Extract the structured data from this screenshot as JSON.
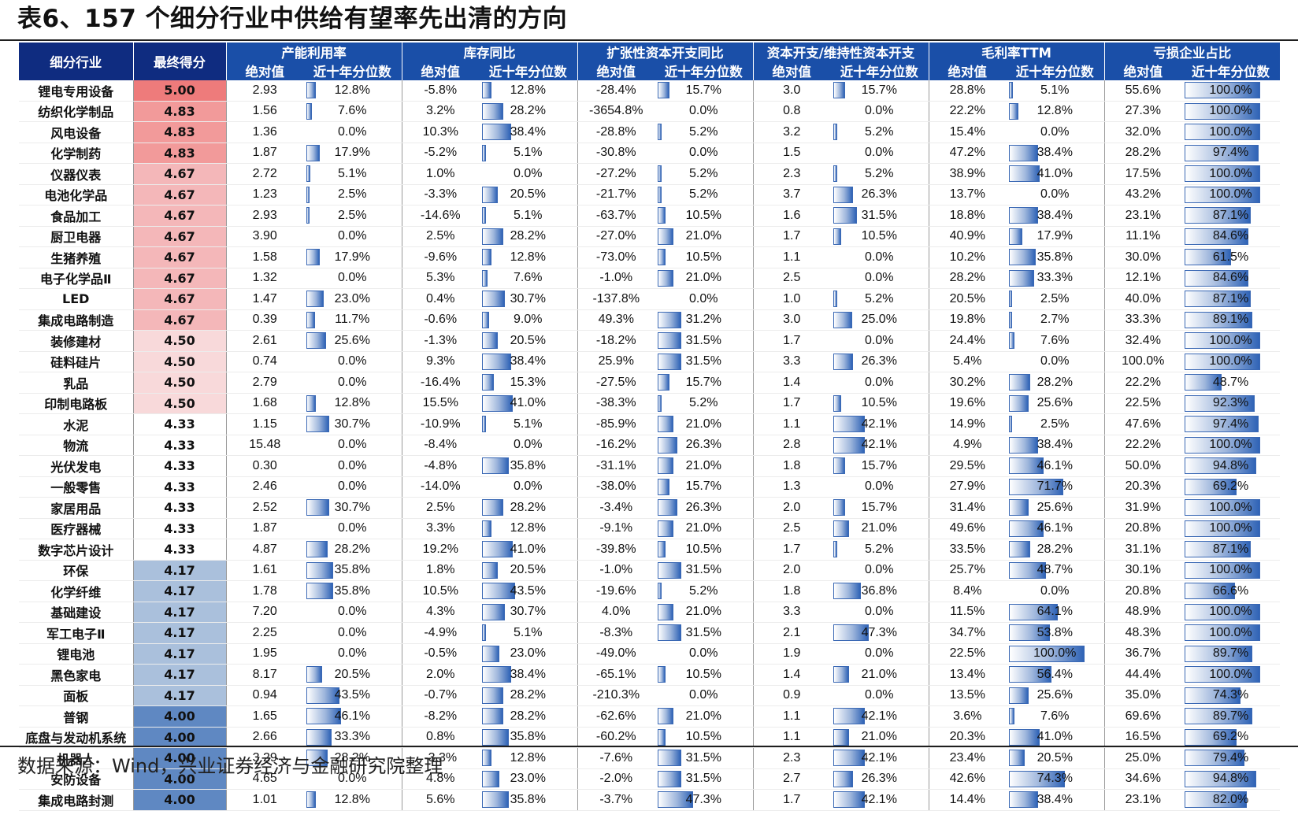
{
  "title": "表6、157 个细分行业中供给有望率先出清的方向",
  "source": "数据来源：Wind，兴业证券经济与金融研究院整理",
  "header": {
    "industry": "细分行业",
    "score": "最终得分",
    "groups": [
      "产能利用率",
      "库存同比",
      "扩张性资本开支同比",
      "资本开支/维持性资本开支",
      "毛利率TTM",
      "亏损企业占比"
    ],
    "sub_abs": "绝对值",
    "sub_pct": "近十年分位数"
  },
  "score_colors": {
    "5.00": "#ee7b7b",
    "4.83": "#f29a9a",
    "4.67": "#f4b7b9",
    "4.50": "#f8d9da",
    "4.33": "#ffffff",
    "4.17": "#aac0dc",
    "4.00": "#5f88c2"
  },
  "rows": [
    {
      "name": "锂电专用设备",
      "score": "5.00",
      "cells": [
        [
          "2.93",
          "12.8%"
        ],
        [
          "-5.8%",
          "12.8%"
        ],
        [
          "-28.4%",
          "15.7%"
        ],
        [
          "3.0",
          "15.7%"
        ],
        [
          "28.8%",
          "5.1%"
        ],
        [
          "55.6%",
          "100.0%"
        ]
      ]
    },
    {
      "name": "纺织化学制品",
      "score": "4.83",
      "cells": [
        [
          "1.56",
          "7.6%"
        ],
        [
          "3.2%",
          "28.2%"
        ],
        [
          "-3654.8%",
          "0.0%"
        ],
        [
          "0.8",
          "0.0%"
        ],
        [
          "22.2%",
          "12.8%"
        ],
        [
          "27.3%",
          "100.0%"
        ]
      ]
    },
    {
      "name": "风电设备",
      "score": "4.83",
      "cells": [
        [
          "1.36",
          "0.0%"
        ],
        [
          "10.3%",
          "38.4%"
        ],
        [
          "-28.8%",
          "5.2%"
        ],
        [
          "3.2",
          "5.2%"
        ],
        [
          "15.4%",
          "0.0%"
        ],
        [
          "32.0%",
          "100.0%"
        ]
      ]
    },
    {
      "name": "化学制药",
      "score": "4.83",
      "cells": [
        [
          "1.87",
          "17.9%"
        ],
        [
          "-5.2%",
          "5.1%"
        ],
        [
          "-30.8%",
          "0.0%"
        ],
        [
          "1.5",
          "0.0%"
        ],
        [
          "47.2%",
          "38.4%"
        ],
        [
          "28.2%",
          "97.4%"
        ]
      ]
    },
    {
      "name": "仪器仪表",
      "score": "4.67",
      "cells": [
        [
          "2.72",
          "5.1%"
        ],
        [
          "1.0%",
          "0.0%"
        ],
        [
          "-27.2%",
          "5.2%"
        ],
        [
          "2.3",
          "5.2%"
        ],
        [
          "38.9%",
          "41.0%"
        ],
        [
          "17.5%",
          "100.0%"
        ]
      ]
    },
    {
      "name": "电池化学品",
      "score": "4.67",
      "cells": [
        [
          "1.23",
          "2.5%"
        ],
        [
          "-3.3%",
          "20.5%"
        ],
        [
          "-21.7%",
          "5.2%"
        ],
        [
          "3.7",
          "26.3%"
        ],
        [
          "13.7%",
          "0.0%"
        ],
        [
          "43.2%",
          "100.0%"
        ]
      ]
    },
    {
      "name": "食品加工",
      "score": "4.67",
      "cells": [
        [
          "2.93",
          "2.5%"
        ],
        [
          "-14.6%",
          "5.1%"
        ],
        [
          "-63.7%",
          "10.5%"
        ],
        [
          "1.6",
          "31.5%"
        ],
        [
          "18.8%",
          "38.4%"
        ],
        [
          "23.1%",
          "87.1%"
        ]
      ]
    },
    {
      "name": "厨卫电器",
      "score": "4.67",
      "cells": [
        [
          "3.90",
          "0.0%"
        ],
        [
          "2.5%",
          "28.2%"
        ],
        [
          "-27.0%",
          "21.0%"
        ],
        [
          "1.7",
          "10.5%"
        ],
        [
          "40.9%",
          "17.9%"
        ],
        [
          "11.1%",
          "84.6%"
        ]
      ]
    },
    {
      "name": "生猪养殖",
      "score": "4.67",
      "cells": [
        [
          "1.58",
          "17.9%"
        ],
        [
          "-9.6%",
          "12.8%"
        ],
        [
          "-73.0%",
          "10.5%"
        ],
        [
          "1.1",
          "0.0%"
        ],
        [
          "10.2%",
          "35.8%"
        ],
        [
          "30.0%",
          "61.5%"
        ]
      ]
    },
    {
      "name": "电子化学品Ⅱ",
      "score": "4.67",
      "cells": [
        [
          "1.32",
          "0.0%"
        ],
        [
          "5.3%",
          "7.6%"
        ],
        [
          "-1.0%",
          "21.0%"
        ],
        [
          "2.5",
          "0.0%"
        ],
        [
          "28.2%",
          "33.3%"
        ],
        [
          "12.1%",
          "84.6%"
        ]
      ]
    },
    {
      "name": "LED",
      "score": "4.67",
      "cells": [
        [
          "1.47",
          "23.0%"
        ],
        [
          "0.4%",
          "30.7%"
        ],
        [
          "-137.8%",
          "0.0%"
        ],
        [
          "1.0",
          "5.2%"
        ],
        [
          "20.5%",
          "2.5%"
        ],
        [
          "40.0%",
          "87.1%"
        ]
      ]
    },
    {
      "name": "集成电路制造",
      "score": "4.67",
      "cells": [
        [
          "0.39",
          "11.7%"
        ],
        [
          "-0.6%",
          "9.0%"
        ],
        [
          "49.3%",
          "31.2%"
        ],
        [
          "3.0",
          "25.0%"
        ],
        [
          "19.8%",
          "2.7%"
        ],
        [
          "33.3%",
          "89.1%"
        ]
      ]
    },
    {
      "name": "装修建材",
      "score": "4.50",
      "cells": [
        [
          "2.61",
          "25.6%"
        ],
        [
          "-1.3%",
          "20.5%"
        ],
        [
          "-18.2%",
          "31.5%"
        ],
        [
          "1.7",
          "0.0%"
        ],
        [
          "24.4%",
          "7.6%"
        ],
        [
          "32.4%",
          "100.0%"
        ]
      ]
    },
    {
      "name": "硅料硅片",
      "score": "4.50",
      "cells": [
        [
          "0.74",
          "0.0%"
        ],
        [
          "9.3%",
          "38.4%"
        ],
        [
          "25.9%",
          "31.5%"
        ],
        [
          "3.3",
          "26.3%"
        ],
        [
          "5.4%",
          "0.0%"
        ],
        [
          "100.0%",
          "100.0%"
        ]
      ]
    },
    {
      "name": "乳品",
      "score": "4.50",
      "cells": [
        [
          "2.79",
          "0.0%"
        ],
        [
          "-16.4%",
          "15.3%"
        ],
        [
          "-27.5%",
          "15.7%"
        ],
        [
          "1.4",
          "0.0%"
        ],
        [
          "30.2%",
          "28.2%"
        ],
        [
          "22.2%",
          "48.7%"
        ]
      ]
    },
    {
      "name": "印制电路板",
      "score": "4.50",
      "cells": [
        [
          "1.68",
          "12.8%"
        ],
        [
          "15.5%",
          "41.0%"
        ],
        [
          "-38.3%",
          "5.2%"
        ],
        [
          "1.7",
          "10.5%"
        ],
        [
          "19.6%",
          "25.6%"
        ],
        [
          "22.5%",
          "92.3%"
        ]
      ]
    },
    {
      "name": "水泥",
      "score": "4.33",
      "cells": [
        [
          "1.15",
          "30.7%"
        ],
        [
          "-10.9%",
          "5.1%"
        ],
        [
          "-85.9%",
          "21.0%"
        ],
        [
          "1.1",
          "42.1%"
        ],
        [
          "14.9%",
          "2.5%"
        ],
        [
          "47.6%",
          "97.4%"
        ]
      ]
    },
    {
      "name": "物流",
      "score": "4.33",
      "cells": [
        [
          "15.48",
          "0.0%"
        ],
        [
          "-8.4%",
          "0.0%"
        ],
        [
          "-16.2%",
          "26.3%"
        ],
        [
          "2.8",
          "42.1%"
        ],
        [
          "4.9%",
          "38.4%"
        ],
        [
          "22.2%",
          "100.0%"
        ]
      ]
    },
    {
      "name": "光伏发电",
      "score": "4.33",
      "cells": [
        [
          "0.30",
          "0.0%"
        ],
        [
          "-4.8%",
          "35.8%"
        ],
        [
          "-31.1%",
          "21.0%"
        ],
        [
          "1.8",
          "15.7%"
        ],
        [
          "29.5%",
          "46.1%"
        ],
        [
          "50.0%",
          "94.8%"
        ]
      ]
    },
    {
      "name": "一般零售",
      "score": "4.33",
      "cells": [
        [
          "2.46",
          "0.0%"
        ],
        [
          "-14.0%",
          "0.0%"
        ],
        [
          "-38.0%",
          "15.7%"
        ],
        [
          "1.3",
          "0.0%"
        ],
        [
          "27.9%",
          "71.7%"
        ],
        [
          "20.3%",
          "69.2%"
        ]
      ]
    },
    {
      "name": "家居用品",
      "score": "4.33",
      "cells": [
        [
          "2.52",
          "30.7%"
        ],
        [
          "2.5%",
          "28.2%"
        ],
        [
          "-3.4%",
          "26.3%"
        ],
        [
          "2.0",
          "15.7%"
        ],
        [
          "31.4%",
          "25.6%"
        ],
        [
          "31.9%",
          "100.0%"
        ]
      ]
    },
    {
      "name": "医疗器械",
      "score": "4.33",
      "cells": [
        [
          "1.87",
          "0.0%"
        ],
        [
          "3.3%",
          "12.8%"
        ],
        [
          "-9.1%",
          "21.0%"
        ],
        [
          "2.5",
          "21.0%"
        ],
        [
          "49.6%",
          "46.1%"
        ],
        [
          "20.8%",
          "100.0%"
        ]
      ]
    },
    {
      "name": "数字芯片设计",
      "score": "4.33",
      "cells": [
        [
          "4.87",
          "28.2%"
        ],
        [
          "19.2%",
          "41.0%"
        ],
        [
          "-39.8%",
          "10.5%"
        ],
        [
          "1.7",
          "5.2%"
        ],
        [
          "33.5%",
          "28.2%"
        ],
        [
          "31.1%",
          "87.1%"
        ]
      ]
    },
    {
      "name": "环保",
      "score": "4.17",
      "cells": [
        [
          "1.61",
          "35.8%"
        ],
        [
          "1.8%",
          "20.5%"
        ],
        [
          "-1.0%",
          "31.5%"
        ],
        [
          "2.0",
          "0.0%"
        ],
        [
          "25.7%",
          "48.7%"
        ],
        [
          "30.1%",
          "100.0%"
        ]
      ]
    },
    {
      "name": "化学纤维",
      "score": "4.17",
      "cells": [
        [
          "1.78",
          "35.8%"
        ],
        [
          "10.5%",
          "43.5%"
        ],
        [
          "-19.6%",
          "5.2%"
        ],
        [
          "1.8",
          "36.8%"
        ],
        [
          "8.4%",
          "0.0%"
        ],
        [
          "20.8%",
          "66.6%"
        ]
      ]
    },
    {
      "name": "基础建设",
      "score": "4.17",
      "cells": [
        [
          "7.20",
          "0.0%"
        ],
        [
          "4.3%",
          "30.7%"
        ],
        [
          "4.0%",
          "21.0%"
        ],
        [
          "3.3",
          "0.0%"
        ],
        [
          "11.5%",
          "64.1%"
        ],
        [
          "48.9%",
          "100.0%"
        ]
      ]
    },
    {
      "name": "军工电子Ⅱ",
      "score": "4.17",
      "cells": [
        [
          "2.25",
          "0.0%"
        ],
        [
          "-4.9%",
          "5.1%"
        ],
        [
          "-8.3%",
          "31.5%"
        ],
        [
          "2.1",
          "47.3%"
        ],
        [
          "34.7%",
          "53.8%"
        ],
        [
          "48.3%",
          "100.0%"
        ]
      ]
    },
    {
      "name": "锂电池",
      "score": "4.17",
      "cells": [
        [
          "1.95",
          "0.0%"
        ],
        [
          "-0.5%",
          "23.0%"
        ],
        [
          "-49.0%",
          "0.0%"
        ],
        [
          "1.9",
          "0.0%"
        ],
        [
          "22.5%",
          "100.0%"
        ],
        [
          "36.7%",
          "89.7%"
        ]
      ]
    },
    {
      "name": "黑色家电",
      "score": "4.17",
      "cells": [
        [
          "8.17",
          "20.5%"
        ],
        [
          "2.0%",
          "38.4%"
        ],
        [
          "-65.1%",
          "10.5%"
        ],
        [
          "1.4",
          "21.0%"
        ],
        [
          "13.4%",
          "56.4%"
        ],
        [
          "44.4%",
          "100.0%"
        ]
      ]
    },
    {
      "name": "面板",
      "score": "4.17",
      "cells": [
        [
          "0.94",
          "43.5%"
        ],
        [
          "-0.7%",
          "28.2%"
        ],
        [
          "-210.3%",
          "0.0%"
        ],
        [
          "0.9",
          "0.0%"
        ],
        [
          "13.5%",
          "25.6%"
        ],
        [
          "35.0%",
          "74.3%"
        ]
      ]
    },
    {
      "name": "普钢",
      "score": "4.00",
      "cells": [
        [
          "1.65",
          "46.1%"
        ],
        [
          "-8.2%",
          "28.2%"
        ],
        [
          "-62.6%",
          "21.0%"
        ],
        [
          "1.1",
          "42.1%"
        ],
        [
          "3.6%",
          "7.6%"
        ],
        [
          "69.6%",
          "89.7%"
        ]
      ]
    },
    {
      "name": "底盘与发动机系统",
      "score": "4.00",
      "cells": [
        [
          "2.66",
          "33.3%"
        ],
        [
          "0.8%",
          "35.8%"
        ],
        [
          "-60.2%",
          "10.5%"
        ],
        [
          "1.1",
          "21.0%"
        ],
        [
          "20.3%",
          "41.0%"
        ],
        [
          "16.5%",
          "69.2%"
        ]
      ]
    },
    {
      "name": "机器人",
      "score": "4.00",
      "cells": [
        [
          "3.29",
          "28.2%"
        ],
        [
          "-3.3%",
          "12.8%"
        ],
        [
          "-7.6%",
          "31.5%"
        ],
        [
          "2.3",
          "42.1%"
        ],
        [
          "23.4%",
          "20.5%"
        ],
        [
          "25.0%",
          "79.4%"
        ]
      ]
    },
    {
      "name": "安防设备",
      "score": "4.00",
      "cells": [
        [
          "4.65",
          "0.0%"
        ],
        [
          "4.8%",
          "23.0%"
        ],
        [
          "-2.0%",
          "31.5%"
        ],
        [
          "2.7",
          "26.3%"
        ],
        [
          "42.6%",
          "74.3%"
        ],
        [
          "34.6%",
          "94.8%"
        ]
      ]
    },
    {
      "name": "集成电路封测",
      "score": "4.00",
      "cells": [
        [
          "1.01",
          "12.8%"
        ],
        [
          "5.6%",
          "35.8%"
        ],
        [
          "-3.7%",
          "47.3%"
        ],
        [
          "1.7",
          "42.1%"
        ],
        [
          "14.4%",
          "38.4%"
        ],
        [
          "23.1%",
          "82.0%"
        ]
      ]
    }
  ]
}
